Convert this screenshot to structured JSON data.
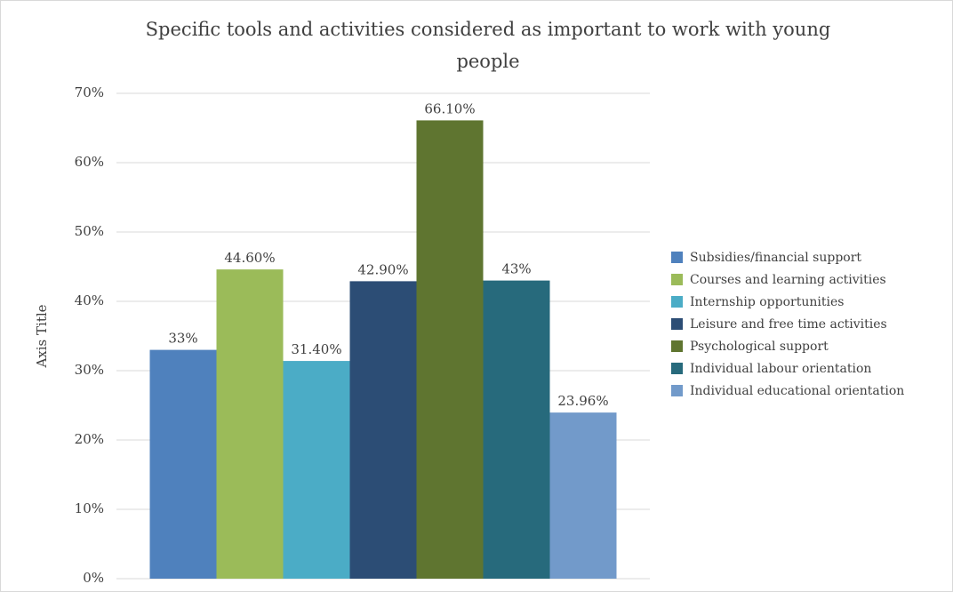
{
  "chart_data": {
    "type": "bar",
    "title": "Specific tools and activities considered as important to work with young people",
    "ylabel": "Axis Title",
    "categories": [
      null
    ],
    "series": [
      {
        "name": "Subsidies/financial support",
        "color": "#4f81bd",
        "values": [
          33
        ],
        "value_labels": [
          "33%"
        ]
      },
      {
        "name": "Courses and learning activities",
        "color": "#9bbb59",
        "values": [
          44.6
        ],
        "value_labels": [
          "44.60%"
        ]
      },
      {
        "name": "Internship opportunities",
        "color": "#4bacc6",
        "values": [
          31.4
        ],
        "value_labels": [
          "31.40%"
        ]
      },
      {
        "name": "Leisure and free time activities",
        "color": "#2c4d75",
        "values": [
          42.9
        ],
        "value_labels": [
          "42.90%"
        ]
      },
      {
        "name": "Psychological support",
        "color": "#5f7530",
        "values": [
          66.1
        ],
        "value_labels": [
          "66.10%"
        ]
      },
      {
        "name": "Individual labour orientation",
        "color": "#276a7c",
        "values": [
          43
        ],
        "value_labels": [
          "43%"
        ]
      },
      {
        "name": "Individual educational orientation",
        "color": "#729aca",
        "values": [
          23.96
        ],
        "value_labels": [
          "23.96%"
        ]
      }
    ],
    "ylim": [
      0,
      70
    ],
    "yticks": [
      {
        "value": 0,
        "label": "0%"
      },
      {
        "value": 10,
        "label": "10%"
      },
      {
        "value": 20,
        "label": "20%"
      },
      {
        "value": 30,
        "label": "30%"
      },
      {
        "value": 40,
        "label": "40%"
      },
      {
        "value": 50,
        "label": "50%"
      },
      {
        "value": 60,
        "label": "60%"
      },
      {
        "value": 70,
        "label": "70%"
      }
    ],
    "grid": true,
    "legend": "right"
  }
}
